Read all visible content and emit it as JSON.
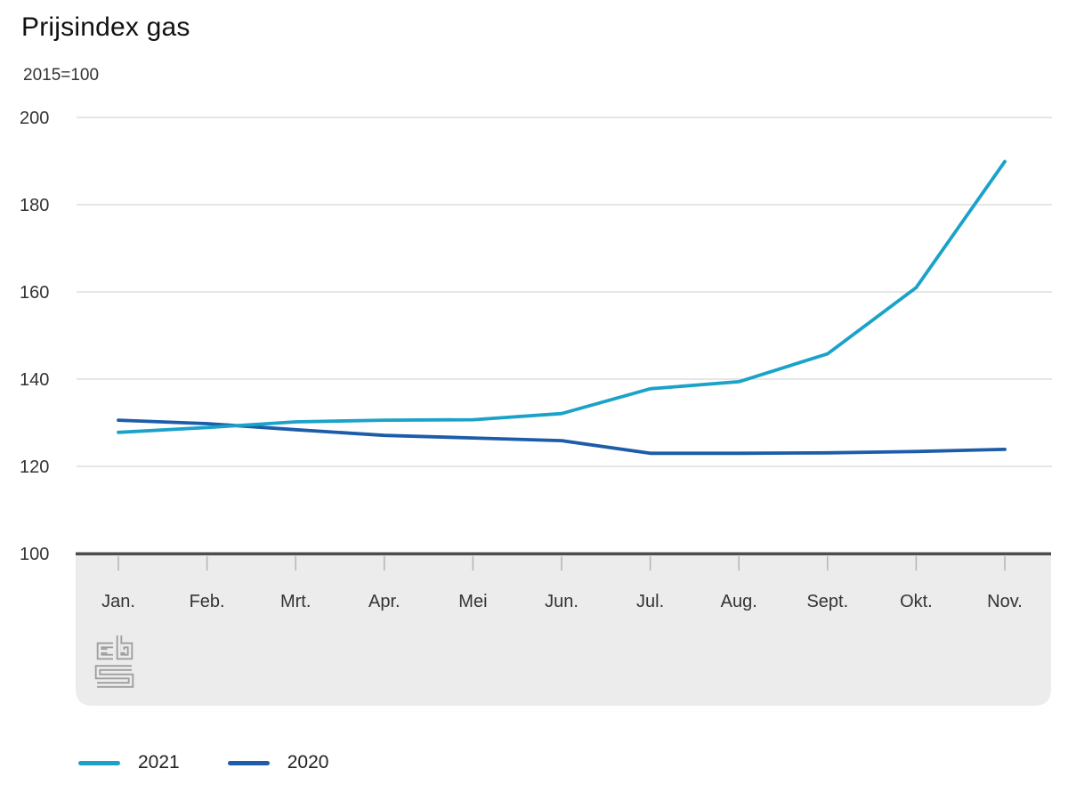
{
  "title": "Prijsindex gas",
  "subtitle": "2015=100",
  "chart_data": {
    "type": "line",
    "title": "Prijsindex gas",
    "subtitle": "2015=100",
    "categories": [
      "Jan.",
      "Feb.",
      "Mrt.",
      "Apr.",
      "Mei",
      "Jun.",
      "Jul.",
      "Aug.",
      "Sept.",
      "Okt.",
      "Nov."
    ],
    "series": [
      {
        "name": "2021",
        "color": "#1ba2c9",
        "values": [
          127.8,
          128.9,
          130.2,
          130.6,
          130.7,
          132.1,
          137.8,
          139.4,
          145.8,
          161.0,
          189.9
        ]
      },
      {
        "name": "2020",
        "color": "#1c5ca9",
        "values": [
          130.6,
          129.8,
          128.4,
          127.1,
          126.5,
          125.9,
          123.0,
          123.0,
          123.1,
          123.4,
          123.9
        ]
      }
    ],
    "ylim": [
      100,
      200
    ],
    "yticks": [
      100,
      120,
      140,
      160,
      180,
      200
    ],
    "grid": "horizontal",
    "legend_position": "bottom",
    "logo": "cbs-logo"
  },
  "colors": {
    "grid": "#cccccc",
    "axis": "#4d4d4d",
    "band": "#ececec",
    "tick": "#b5b5b5",
    "axis_text": "#333333",
    "logo": "#9e9e9e"
  }
}
